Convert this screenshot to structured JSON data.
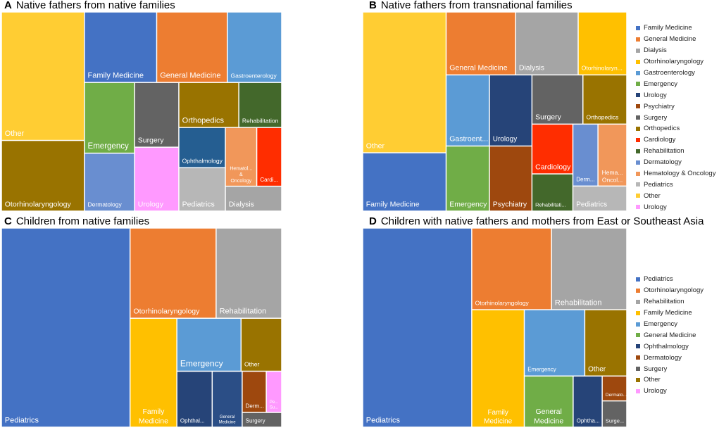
{
  "colors": {
    "Family Medicine": "#4472C4",
    "General Medicine": "#ED7D31",
    "Dialysis": "#A5A5A5",
    "Otorhinolaryngology": "#FFC000",
    "Gastroenterology": "#5B9BD5",
    "Emergency": "#70AD47",
    "Urology": "#264478",
    "Psychiatry": "#9E480E",
    "Surgery": "#636363",
    "Orthopedics": "#997300",
    "Cardiology": "#FF2D00",
    "Rehabilitation": "#43682B",
    "Dermatology": "#698ED0",
    "Hematology & Oncology": "#F1975A",
    "Pediatrics": "#B7B7B7",
    "Other": "#FFCD33",
    "Ophthalmology": "#255E91"
  },
  "chart_data": [
    {
      "type": "treemap",
      "panel_letter": "A",
      "title": "Native fathers from native families",
      "legend": [],
      "items": [
        {
          "label": "Other",
          "value": 19.5,
          "color": "#FFCD33"
        },
        {
          "label": "Otorhinolaryngology",
          "value": 10.0,
          "color": "#997300"
        },
        {
          "label": "Family Medicine",
          "value": 7.6,
          "color": "#4472C4"
        },
        {
          "label": "General Medicine",
          "value": 7.1,
          "color": "#ED7D31"
        },
        {
          "label": "Gastroenterology",
          "value": 6.4,
          "color": "#5B9BD5"
        },
        {
          "label": "Emergency",
          "value": 5.0,
          "color": "#70AD47"
        },
        {
          "label": "Dermatology",
          "value": 5.0,
          "color": "#698ED0"
        },
        {
          "label": "Surgery",
          "value": 4.0,
          "color": "#636363"
        },
        {
          "label": "Urology",
          "value": 4.5,
          "color": "#FF99FF"
        },
        {
          "label": "Orthopedics",
          "value": 4.3,
          "color": "#997300"
        },
        {
          "label": "Rehabilitation",
          "value": 2.9,
          "color": "#43682B"
        },
        {
          "label": "Ophthalmology",
          "value": 3.2,
          "color": "#255E91"
        },
        {
          "label": "Pediatrics",
          "value": 3.1,
          "color": "#B7B7B7"
        },
        {
          "label": "Hematol...",
          "label2": "&",
          "label3": "Oncology",
          "value": 2.2,
          "color": "#F1975A"
        },
        {
          "label": "Cardi...",
          "value": 1.7,
          "color": "#FF2D00"
        },
        {
          "label": "Dialysis",
          "value": 2.4,
          "color": "#A5A5A5"
        }
      ]
    },
    {
      "type": "treemap",
      "panel_letter": "B",
      "title": "Native fathers from transnational families",
      "legend": [
        "Family Medicine",
        "General Medicine",
        "Dialysis",
        "Otorhinolaryngology",
        "Gastroenterology",
        "Emergency",
        "Urology",
        "Psychiatry",
        "Surgery",
        "Orthopedics",
        "Cardiology",
        "Rehabilitation",
        "Dermatology",
        "Hematology & Oncology",
        "Pediatrics",
        "Other",
        "Urology"
      ],
      "legend_colors": [
        "#4472C4",
        "#ED7D31",
        "#A5A5A5",
        "#FFC000",
        "#5B9BD5",
        "#70AD47",
        "#264478",
        "#9E480E",
        "#636363",
        "#997300",
        "#FF2D00",
        "#43682B",
        "#698ED0",
        "#F1975A",
        "#B7B7B7",
        "#FFCD33",
        "#FF99FF"
      ],
      "items": [
        {
          "label": "Other",
          "value": 16.5,
          "color": "#FFCD33"
        },
        {
          "label": "Family Medicine",
          "value": 10.3,
          "color": "#4472C4"
        },
        {
          "label": "General Medicine",
          "value": 7.6,
          "color": "#ED7D31"
        },
        {
          "label": "Dialysis",
          "value": 6.9,
          "color": "#A5A5A5"
        },
        {
          "label": "Otorhinolaryn...",
          "value": 6.4,
          "color": "#FFC000"
        },
        {
          "label": "Gastroent...",
          "value": 5.0,
          "color": "#5B9BD5"
        },
        {
          "label": "Emergency",
          "value": 4.6,
          "color": "#70AD47"
        },
        {
          "label": "Urology",
          "value": 4.5,
          "color": "#264478"
        },
        {
          "label": "Psychiatry",
          "value": 4.6,
          "color": "#9E480E"
        },
        {
          "label": "Surgery",
          "value": 3.6,
          "color": "#636363"
        },
        {
          "label": "Orthopedics",
          "value": 3.3,
          "color": "#997300"
        },
        {
          "label": "Cardiology",
          "value": 3.7,
          "color": "#FF2D00"
        },
        {
          "label": "Rehabilitati...",
          "value": 2.5,
          "color": "#43682B"
        },
        {
          "label": "Derm...",
          "value": 2.9,
          "color": "#698ED0"
        },
        {
          "label": "Hema...",
          "label2": "Oncol...",
          "value": 2.8,
          "color": "#F1975A"
        },
        {
          "label": "Pediatrics",
          "value": 2.3,
          "color": "#B7B7B7"
        }
      ]
    },
    {
      "type": "treemap",
      "panel_letter": "C",
      "title": "Children from native families",
      "legend": [],
      "items": [
        {
          "label": "Pediatrics",
          "value": 42.0,
          "color": "#4472C4"
        },
        {
          "label": "Otorhinolaryngology",
          "value": 13.7,
          "color": "#ED7D31"
        },
        {
          "label": "Rehabilitation",
          "value": 11.4,
          "color": "#A5A5A5"
        },
        {
          "label": "Family",
          "label2": "Medicine",
          "value": 8.1,
          "color": "#FFC000"
        },
        {
          "label": "Emergency",
          "value": 6.9,
          "color": "#5B9BD5"
        },
        {
          "label": "Other",
          "value": 3.6,
          "color": "#997300"
        },
        {
          "label": "Ophthal...",
          "value": 3.5,
          "color": "#264478"
        },
        {
          "label": "General",
          "label2": "Medicine",
          "value": 3.3,
          "color": "#2B4E86"
        },
        {
          "label": "Derm...",
          "value": 1.9,
          "color": "#9E480E"
        },
        {
          "label": "Pe...",
          "label2": "Su...",
          "value": 1.3,
          "color": "#FF99FF"
        },
        {
          "label": "Surgery",
          "value": 1.4,
          "color": "#636363"
        }
      ]
    },
    {
      "type": "treemap",
      "panel_letter": "D",
      "title": "Children with native fathers and mothers from East or Southeast Asia",
      "legend": [
        "Pediatrics",
        "Otorhinolaryngology",
        "Rehabilitation",
        "Family Medicine",
        "Emergency",
        "General Medicine",
        "Ophthalmology",
        "Dermatology",
        "Surgery",
        "Other",
        "Urology"
      ],
      "legend_colors": [
        "#4472C4",
        "#ED7D31",
        "#A5A5A5",
        "#FFC000",
        "#5B9BD5",
        "#70AD47",
        "#264478",
        "#9E480E",
        "#636363",
        "#997300",
        "#FF99FF"
      ],
      "items": [
        {
          "label": "Pediatrics",
          "value": 40.2,
          "color": "#4472C4"
        },
        {
          "label": "Otorhinolaryngology",
          "value": 13.1,
          "color": "#ED7D31"
        },
        {
          "label": "Rehabilitation",
          "value": 12.5,
          "color": "#A5A5A5"
        },
        {
          "label": "Family",
          "label2": "Medicine",
          "value": 11.7,
          "color": "#FFC000"
        },
        {
          "label": "Emergency",
          "value": 7.4,
          "color": "#5B9BD5"
        },
        {
          "label": "Other",
          "value": 4.9,
          "color": "#997300"
        },
        {
          "label": "General",
          "label2": "Medicine",
          "value": 5.3,
          "color": "#70AD47"
        },
        {
          "label": "Ophtha...",
          "value": 3.1,
          "color": "#264478"
        },
        {
          "label": "Dermato...",
          "value": 1.4,
          "color": "#9E480E"
        },
        {
          "label": "Surge...",
          "value": 1.3,
          "color": "#636363"
        }
      ]
    }
  ]
}
